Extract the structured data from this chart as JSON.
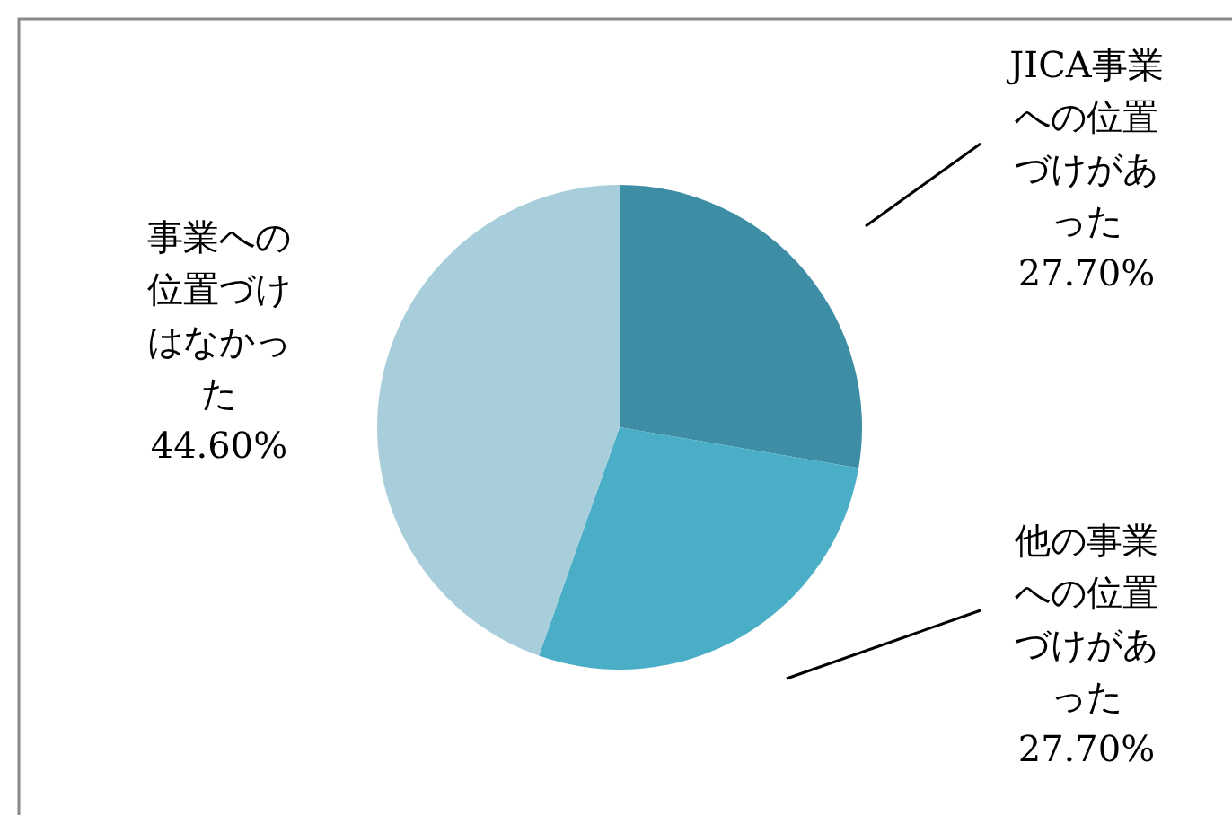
{
  "chart_data": {
    "type": "pie",
    "categories": [
      "JICA事業への位置づけがあった",
      "他の事業への位置づけがあった",
      "事業への位置づけはなかった"
    ],
    "values": [
      27.7,
      27.7,
      44.6
    ],
    "colors": [
      "#3d8ea5",
      "#4aaec7",
      "#a9cedb"
    ],
    "value_labels": [
      "27.70%",
      "27.70%",
      "44.60%"
    ]
  }
}
